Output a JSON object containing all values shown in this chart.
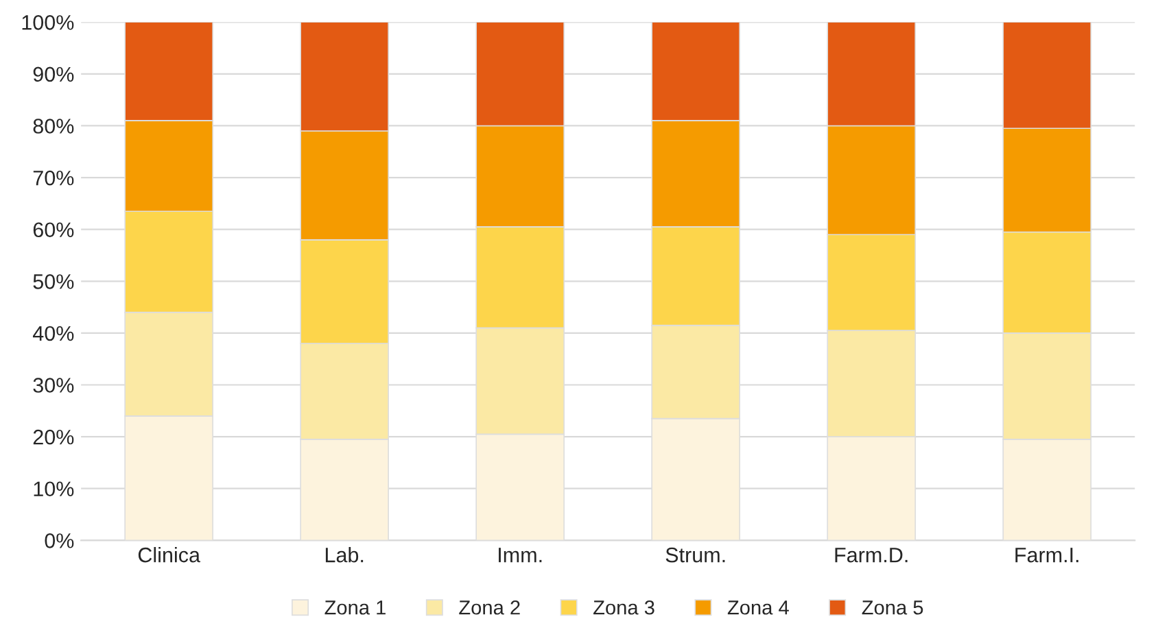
{
  "chart_data": {
    "type": "bar",
    "stacked": true,
    "categories": [
      "Clinica",
      "Lab.",
      "Imm.",
      "Strum.",
      "Farm.D.",
      "Farm.I."
    ],
    "series": [
      {
        "name": "Zona 1",
        "color": "#fdf3dd",
        "values": [
          24,
          19.5,
          20.5,
          23.5,
          20,
          19.5
        ]
      },
      {
        "name": "Zona 2",
        "color": "#fbe9a4",
        "values": [
          20,
          18.5,
          20.5,
          18,
          20.5,
          20.5
        ]
      },
      {
        "name": "Zona 3",
        "color": "#fdd54b",
        "values": [
          19.5,
          20,
          19.5,
          19,
          18.5,
          19.5
        ]
      },
      {
        "name": "Zona 4",
        "color": "#f59b00",
        "values": [
          17.5,
          21,
          19.5,
          20.5,
          21,
          20
        ]
      },
      {
        "name": "Zona 5",
        "color": "#e35a13",
        "values": [
          19,
          21,
          20,
          19,
          20,
          20.5
        ]
      }
    ],
    "ylim": [
      0,
      100
    ],
    "yticks": [
      {
        "value": 0,
        "label": "0%"
      },
      {
        "value": 10,
        "label": "10%"
      },
      {
        "value": 20,
        "label": "20%"
      },
      {
        "value": 30,
        "label": "30%"
      },
      {
        "value": 40,
        "label": "40%"
      },
      {
        "value": 50,
        "label": "50%"
      },
      {
        "value": 60,
        "label": "60%"
      },
      {
        "value": 70,
        "label": "70%"
      },
      {
        "value": 80,
        "label": "80%"
      },
      {
        "value": 90,
        "label": "90%"
      },
      {
        "value": 100,
        "label": "100%"
      }
    ],
    "grid": "y",
    "legend": "bottom"
  }
}
